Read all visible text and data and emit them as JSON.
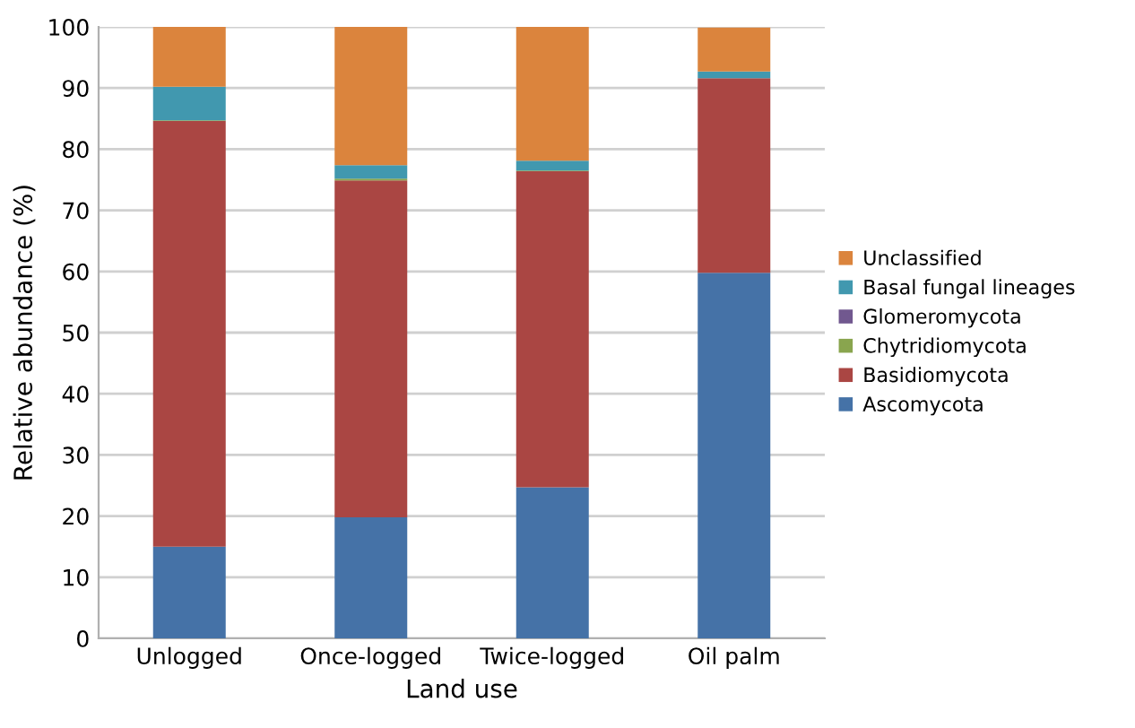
{
  "chart_data": {
    "type": "bar",
    "stacked": true,
    "xlabel": "Land use",
    "ylabel": "Relative abundance (%)",
    "categories": [
      "Unlogged",
      "Once-logged",
      "Twice-logged",
      "Oil palm"
    ],
    "series": [
      {
        "name": "Ascomycota",
        "color": "#4572a7",
        "values": [
          15,
          19.8,
          24.7,
          59.8
        ]
      },
      {
        "name": "Basidiomycota",
        "color": "#aa4643",
        "values": [
          69.6,
          55.1,
          51.7,
          31.8
        ]
      },
      {
        "name": "Chytridiomycota",
        "color": "#89a54e",
        "values": [
          0.1,
          0.3,
          0.1,
          null
        ]
      },
      {
        "name": "Glomeromycota",
        "color": "#71588f",
        "values": [
          0,
          0,
          0,
          0
        ]
      },
      {
        "name": "Basal fungal lineages",
        "color": "#4198af",
        "values": [
          5.5,
          2.2,
          1.6,
          1.1
        ]
      },
      {
        "name": "Unclassified",
        "color": "#db843d",
        "values": [
          9.8,
          22.6,
          21.9,
          7.2
        ]
      }
    ],
    "ylim": [
      0,
      100
    ],
    "yticks": [
      0,
      10,
      20,
      30,
      40,
      50,
      60,
      70,
      80,
      90,
      100
    ],
    "grid": "y",
    "legend": "right"
  }
}
